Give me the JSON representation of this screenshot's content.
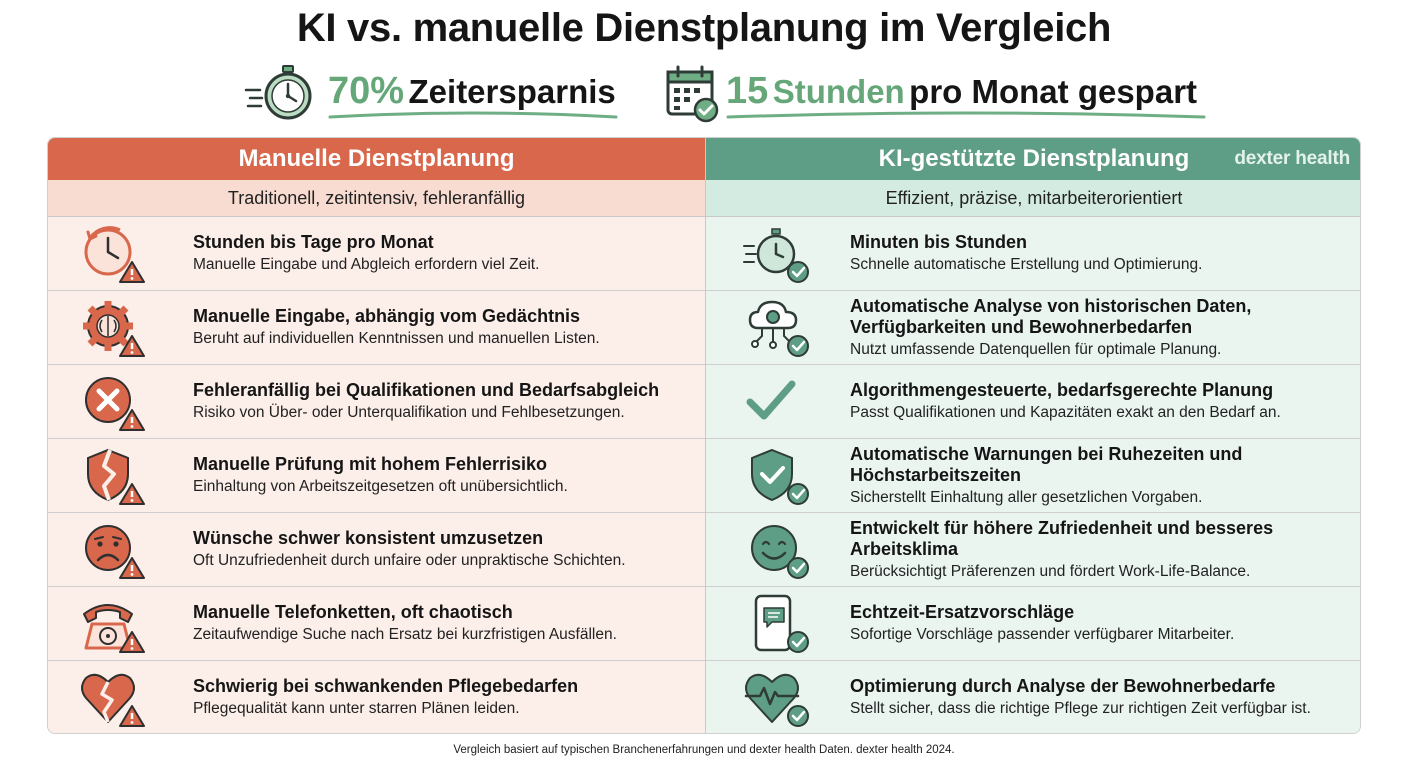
{
  "title": "KI vs. manuelle Dienstplanung im Vergleich",
  "stats": [
    {
      "icon": "stopwatch-icon",
      "value": "70%",
      "label": "Zeitersparnis"
    },
    {
      "icon": "calendar-check-icon",
      "value": "15",
      "label_accent": "Stunden",
      "label_rest": "pro Monat gespart"
    }
  ],
  "colors": {
    "manual": "#d8674c",
    "ai": "#5e9e86",
    "accent_green": "#66a779"
  },
  "manual": {
    "heading": "Manuelle Dienstplanung",
    "subtitle": "Traditionell, zeitintensiv, fehleranfällig",
    "rows": [
      {
        "icon": "clock-warning-icon",
        "title": "Stunden bis Tage pro Monat",
        "desc": "Manuelle Eingabe und Abgleich erfordern viel Zeit."
      },
      {
        "icon": "brain-gear-warning-icon",
        "title": "Manuelle Eingabe, abhängig vom Gedächtnis",
        "desc": "Beruht auf individuellen Kenntnissen und manuellen Listen."
      },
      {
        "icon": "x-circle-warning-icon",
        "title": "Fehleranfällig bei Qualifikationen und Bedarfsabgleich",
        "desc": "Risiko von Über- oder Unterqualifikation und Fehlbesetzungen."
      },
      {
        "icon": "broken-shield-warning-icon",
        "title": "Manuelle Prüfung mit hohem Fehlerrisiko",
        "desc": "Einhaltung von Arbeitszeitgesetzen oft unübersichtlich."
      },
      {
        "icon": "sad-face-warning-icon",
        "title": "Wünsche schwer konsistent umzusetzen",
        "desc": "Oft Unzufriedenheit durch unfaire oder unpraktische Schichten."
      },
      {
        "icon": "telephone-warning-icon",
        "title": "Manuelle Telefonketten, oft chaotisch",
        "desc": "Zeitaufwendige Suche nach Ersatz bei kurzfristigen Ausfällen."
      },
      {
        "icon": "broken-heart-warning-icon",
        "title": "Schwierig bei schwankenden Pflegebedarfen",
        "desc": "Pflegequalität kann unter starren Plänen leiden."
      }
    ]
  },
  "ai": {
    "heading": "KI-gestützte Dienstplanung",
    "brand_bold": "dexter",
    "brand_rest": " health",
    "subtitle": "Effizient, präzise, mitarbeiterorientiert",
    "rows": [
      {
        "icon": "stopwatch-check-icon",
        "title": "Minuten bis Stunden",
        "desc": "Schnelle automatische Erstellung und Optimierung."
      },
      {
        "icon": "cloud-gear-check-icon",
        "title": "Automatische Analyse von historischen Daten, Verfügbarkeiten und Bewohnerbedarfen",
        "desc": "Nutzt umfassende Datenquellen für optimale Planung."
      },
      {
        "icon": "checkmark-icon",
        "title": "Algorithmengesteuerte, bedarfsgerechte Planung",
        "desc": "Passt Qualifikationen und Kapazitäten exakt an den Bedarf an."
      },
      {
        "icon": "shield-check-icon",
        "title": "Automatische Warnungen bei Ruhezeiten und Höchstarbeitszeiten",
        "desc": "Sicherstellt Einhaltung aller gesetzlichen Vorgaben."
      },
      {
        "icon": "smiley-check-icon",
        "title": "Entwickelt für höhere Zufriedenheit und besseres Arbeitsklima",
        "desc": "Berücksichtigt Präferenzen und fördert Work-Life-Balance."
      },
      {
        "icon": "smartphone-check-icon",
        "title": "Echtzeit-Ersatzvorschläge",
        "desc": "Sofortige Vorschläge passender verfügbarer Mitarbeiter."
      },
      {
        "icon": "heart-pulse-check-icon",
        "title": "Optimierung durch Analyse der Bewohnerbedarfe",
        "desc": "Stellt sicher, dass die richtige Pflege zur richtigen Zeit verfügbar ist."
      }
    ]
  },
  "footer": "Vergleich basiert auf typischen Branchenerfahrungen und dexter health Daten. dexter health 2024."
}
